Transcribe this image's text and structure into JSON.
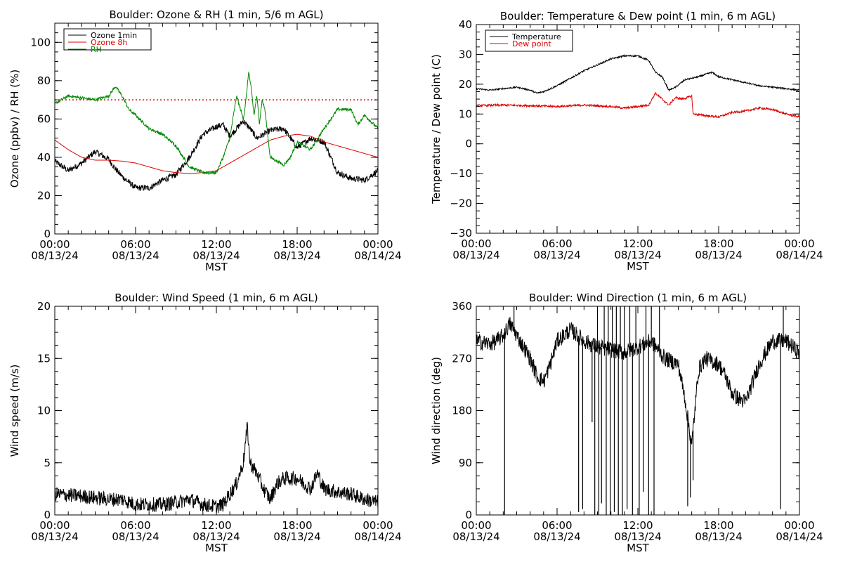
{
  "colors": {
    "black": "#000000",
    "red": "#dd0000",
    "green": "#008800",
    "background": "#ffffff"
  },
  "chart_data": [
    {
      "type": "line",
      "title": "Boulder: Ozone & RH (1 min, 5/6 m AGL)",
      "xlabel": "MST",
      "ylabel": "Ozone (ppbv) / RH (%)",
      "xlim": [
        0,
        24
      ],
      "ylim": [
        0,
        110
      ],
      "x_ticks": [
        0,
        6,
        12,
        18,
        24
      ],
      "x_tick_labels": [
        [
          "00:00",
          "08/13/24"
        ],
        [
          "06:00",
          "08/13/24"
        ],
        [
          "12:00",
          "08/13/24"
        ],
        [
          "18:00",
          "08/13/24"
        ],
        [
          "00:00",
          "08/14/24"
        ]
      ],
      "y_ticks": [
        0,
        20,
        40,
        60,
        80,
        100
      ],
      "y_tick_labels": [
        "0",
        "20",
        "40",
        "60",
        "80",
        "100"
      ],
      "legend_position": "top-left",
      "reference_lines": [
        {
          "y": 70,
          "color": "#dd0000",
          "style": "dotted"
        }
      ],
      "series": [
        {
          "name": "Ozone 1min",
          "color": "#000000",
          "noise": 1.6,
          "x": [
            0,
            1,
            2,
            3,
            3.5,
            4,
            4.5,
            5,
            6,
            7,
            8,
            9,
            10,
            11,
            12,
            12.5,
            13,
            14,
            14.5,
            15,
            16,
            17,
            18,
            19,
            20,
            21,
            22,
            23,
            24
          ],
          "y": [
            38,
            33,
            37,
            43,
            41,
            39,
            34,
            30,
            24,
            24,
            28,
            31,
            40,
            52,
            56,
            57,
            51,
            59,
            55,
            50,
            54,
            55,
            45,
            50,
            48,
            32,
            29,
            28,
            33
          ]
        },
        {
          "name": "Ozone 8h",
          "color": "#dd0000",
          "noise": 0,
          "x": [
            0,
            1,
            2,
            3,
            4,
            5,
            6,
            7,
            8,
            9,
            10,
            11,
            12,
            13,
            14,
            15,
            16,
            17,
            18,
            19,
            20,
            21,
            22,
            23,
            24
          ],
          "y": [
            49,
            44,
            40,
            38.5,
            38.5,
            38,
            37,
            35,
            33,
            32,
            31.5,
            32,
            33,
            37,
            41,
            45,
            49,
            51,
            52,
            51,
            48,
            46,
            44,
            42,
            40
          ]
        },
        {
          "name": "RH",
          "color": "#008800",
          "noise": 0.8,
          "x": [
            0,
            1,
            2,
            3,
            4,
            4.5,
            5,
            5.5,
            6,
            7,
            8,
            9,
            10,
            11,
            12,
            12.5,
            13,
            13.5,
            14,
            14.2,
            14.4,
            14.6,
            14.8,
            15,
            15.2,
            15.4,
            15.6,
            16,
            17,
            17.5,
            18,
            19,
            20,
            21,
            22,
            22.5,
            23,
            24
          ],
          "y": [
            68,
            72,
            71,
            70,
            72,
            77,
            72,
            65,
            62,
            55,
            52,
            46,
            35,
            32,
            32,
            40,
            50,
            72,
            60,
            70,
            85,
            75,
            62,
            72,
            58,
            70,
            65,
            40,
            36,
            40,
            48,
            44,
            55,
            65,
            65,
            57,
            62,
            55
          ]
        }
      ]
    },
    {
      "type": "line",
      "title": "Boulder: Temperature & Dew point (1 min, 6 m AGL)",
      "xlabel": "MST",
      "ylabel": "Temperature / Dew point (C)",
      "xlim": [
        0,
        24
      ],
      "ylim": [
        -30,
        40
      ],
      "x_ticks": [
        0,
        6,
        12,
        18,
        24
      ],
      "x_tick_labels": [
        [
          "00:00",
          "08/13/24"
        ],
        [
          "06:00",
          "08/13/24"
        ],
        [
          "12:00",
          "08/13/24"
        ],
        [
          "18:00",
          "08/13/24"
        ],
        [
          "00:00",
          "08/14/24"
        ]
      ],
      "y_ticks": [
        -30,
        -20,
        -10,
        0,
        10,
        20,
        30,
        40
      ],
      "y_tick_labels": [
        "−30",
        "−20",
        "−10",
        "0",
        "10",
        "20",
        "30",
        "40"
      ],
      "legend_position": "top-left",
      "series": [
        {
          "name": "Temperature",
          "color": "#000000",
          "noise": 0.25,
          "x": [
            0,
            1,
            2,
            3,
            4,
            4.5,
            5,
            6,
            7,
            8,
            9,
            10,
            11,
            12,
            12.8,
            13.3,
            13.8,
            14.3,
            14.8,
            15.5,
            16.5,
            17.5,
            18,
            19,
            20,
            21,
            22,
            23,
            24
          ],
          "y": [
            18.5,
            18,
            18.5,
            19,
            18,
            17,
            17.5,
            19.5,
            22,
            24.5,
            26.5,
            28.5,
            29.5,
            29.5,
            28,
            24,
            22.5,
            18,
            19,
            21.5,
            22.5,
            24,
            22.5,
            21.5,
            20.5,
            19.5,
            19,
            18.5,
            18
          ]
        },
        {
          "name": "Dew point",
          "color": "#dd0000",
          "noise": 0.35,
          "x": [
            0,
            2,
            4,
            6,
            8,
            10,
            11,
            12,
            12.8,
            13.3,
            13.8,
            14.3,
            14.8,
            15.3,
            16,
            16.1,
            17,
            18,
            19,
            20,
            21,
            22,
            23,
            24
          ],
          "y": [
            12.8,
            13,
            12.8,
            12.5,
            13,
            12.5,
            12,
            12.5,
            13,
            17,
            15,
            13,
            15.5,
            15,
            16,
            10,
            9.5,
            9,
            10.5,
            11,
            12,
            11.5,
            10,
            9
          ]
        }
      ]
    },
    {
      "type": "line",
      "title": "Boulder: Wind Speed (1 min, 6 m AGL)",
      "xlabel": "MST",
      "ylabel": "Wind speed (m/s)",
      "xlim": [
        0,
        24
      ],
      "ylim": [
        0,
        20
      ],
      "x_ticks": [
        0,
        6,
        12,
        18,
        24
      ],
      "x_tick_labels": [
        [
          "00:00",
          "08/13/24"
        ],
        [
          "06:00",
          "08/13/24"
        ],
        [
          "12:00",
          "08/13/24"
        ],
        [
          "18:00",
          "08/13/24"
        ],
        [
          "00:00",
          "08/14/24"
        ]
      ],
      "y_ticks": [
        0,
        5,
        10,
        15,
        20
      ],
      "y_tick_labels": [
        "0",
        "5",
        "10",
        "15",
        "20"
      ],
      "series": [
        {
          "name": "",
          "color": "#000000",
          "noise": 0.7,
          "floor": 0,
          "x": [
            0,
            2,
            4,
            5,
            6,
            7,
            8,
            9,
            10,
            11,
            12,
            12.5,
            13,
            13.5,
            14,
            14.3,
            14.5,
            15,
            15.5,
            16,
            16.5,
            17,
            18,
            19,
            19.5,
            20,
            21,
            22,
            23,
            24
          ],
          "y": [
            2,
            1.8,
            1.5,
            1.5,
            1,
            1,
            1,
            1.2,
            1.5,
            1,
            0.8,
            1,
            2,
            3,
            5,
            8.5,
            5,
            4,
            2.5,
            1.5,
            3,
            3.5,
            3.5,
            2.5,
            4,
            2.5,
            2.2,
            2,
            1.5,
            1.2
          ]
        }
      ]
    },
    {
      "type": "line",
      "title": "Boulder: Wind Direction (1 min, 6 m AGL)",
      "xlabel": "MST",
      "ylabel": "Wind direction (deg)",
      "xlim": [
        0,
        24
      ],
      "ylim": [
        0,
        360
      ],
      "x_ticks": [
        0,
        6,
        12,
        18,
        24
      ],
      "x_tick_labels": [
        [
          "00:00",
          "08/13/24"
        ],
        [
          "06:00",
          "08/13/24"
        ],
        [
          "12:00",
          "08/13/24"
        ],
        [
          "18:00",
          "08/13/24"
        ],
        [
          "00:00",
          "08/14/24"
        ]
      ],
      "y_ticks": [
        0,
        90,
        180,
        270,
        360
      ],
      "y_tick_labels": [
        "0",
        "90",
        "180",
        "270",
        "360"
      ],
      "series": [
        {
          "name": "",
          "color": "#000000",
          "noise": 14,
          "floor": 0,
          "ceil": 360,
          "x": [
            0,
            1,
            1.5,
            2,
            2.5,
            3,
            3.5,
            4,
            4.5,
            5,
            5.5,
            6,
            7,
            8,
            9,
            10,
            11,
            12,
            13,
            14,
            15,
            15.5,
            16,
            16.5,
            17,
            18,
            18.5,
            19,
            19.5,
            20,
            21,
            22,
            23,
            24
          ],
          "y": [
            300,
            295,
            300,
            310,
            330,
            310,
            290,
            270,
            240,
            230,
            260,
            300,
            320,
            300,
            290,
            285,
            280,
            290,
            300,
            270,
            260,
            200,
            120,
            250,
            270,
            260,
            240,
            210,
            200,
            195,
            260,
            300,
            300,
            280
          ]
        }
      ],
      "spikes": [
        {
          "x": 2.1,
          "y": 0
        },
        {
          "x": 2.8,
          "y": 360
        },
        {
          "x": 7.6,
          "y": 5
        },
        {
          "x": 7.9,
          "y": 10
        },
        {
          "x": 8.6,
          "y": 160
        },
        {
          "x": 8.8,
          "y": 0
        },
        {
          "x": 9.0,
          "y": 360
        },
        {
          "x": 9.1,
          "y": 0
        },
        {
          "x": 9.3,
          "y": 20
        },
        {
          "x": 9.5,
          "y": 360
        },
        {
          "x": 9.65,
          "y": 0
        },
        {
          "x": 9.8,
          "y": 360
        },
        {
          "x": 9.95,
          "y": 0
        },
        {
          "x": 10.1,
          "y": 360
        },
        {
          "x": 10.25,
          "y": 5
        },
        {
          "x": 10.4,
          "y": 360
        },
        {
          "x": 10.55,
          "y": 0
        },
        {
          "x": 10.7,
          "y": 360
        },
        {
          "x": 10.85,
          "y": 0
        },
        {
          "x": 11.0,
          "y": 360
        },
        {
          "x": 11.2,
          "y": 10
        },
        {
          "x": 11.4,
          "y": 360
        },
        {
          "x": 11.6,
          "y": 0
        },
        {
          "x": 11.85,
          "y": 360
        },
        {
          "x": 12.1,
          "y": 0
        },
        {
          "x": 12.4,
          "y": 40
        },
        {
          "x": 12.6,
          "y": 360
        },
        {
          "x": 12.8,
          "y": 0
        },
        {
          "x": 13.0,
          "y": 360
        },
        {
          "x": 13.2,
          "y": 0
        },
        {
          "x": 13.6,
          "y": 360
        },
        {
          "x": 15.7,
          "y": 15
        },
        {
          "x": 15.9,
          "y": 30
        },
        {
          "x": 16.1,
          "y": 60
        },
        {
          "x": 22.6,
          "y": 10
        },
        {
          "x": 22.8,
          "y": 360
        }
      ]
    }
  ]
}
